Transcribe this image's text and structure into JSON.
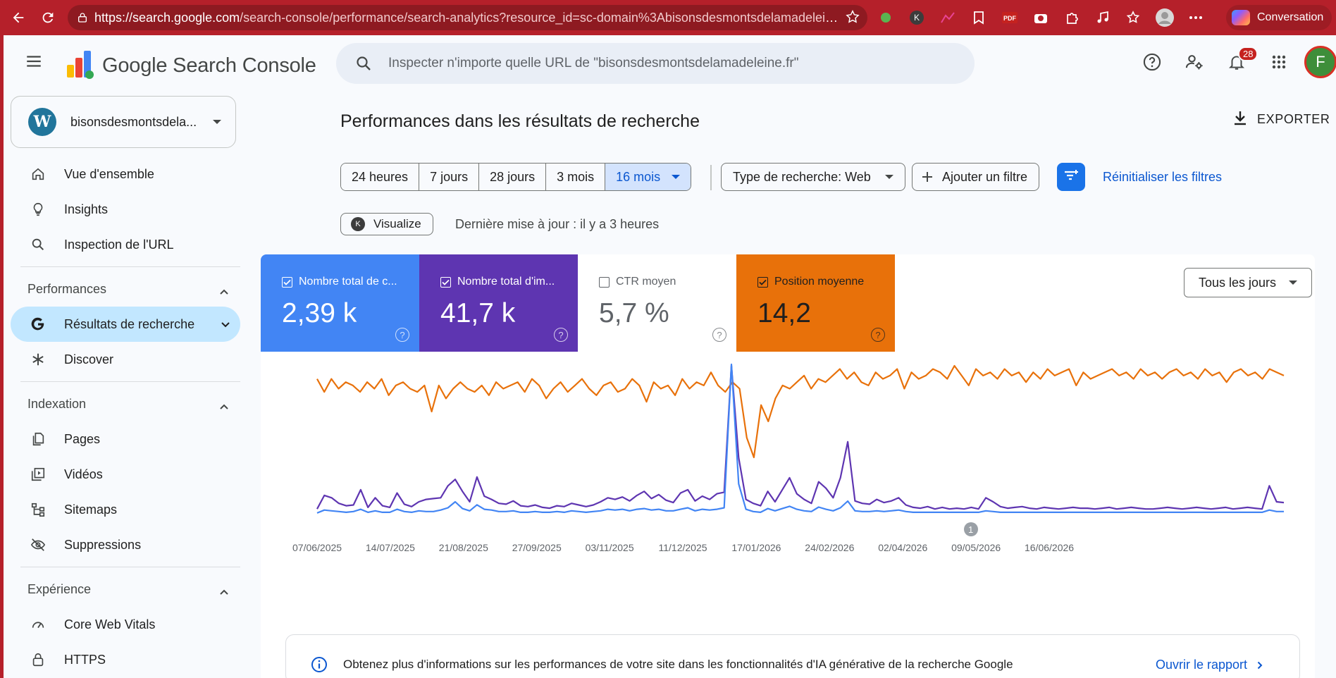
{
  "browser": {
    "url_main": "https://search.google.com",
    "url_rest": "/search-console/performance/search-analytics?resource_id=sc-domain%3Abisonsdesmontsdelamadeleine.fr...",
    "conversation_label": "Conversation",
    "icons": [
      "back-icon",
      "reload-icon",
      "lock-icon",
      "star-icon",
      "extension-icons",
      "more-icon"
    ]
  },
  "header": {
    "product_name": "Google Search Console",
    "search_placeholder": "Inspecter n'importe quelle URL de \"bisonsdesmontsdelamadeleine.fr\"",
    "notifications_count": "28",
    "avatar_letter": "F"
  },
  "sidebar": {
    "property_name": "bisonsdesmontsdela...",
    "top_items": [
      {
        "label": "Vue d'ensemble",
        "icon": "home-icon"
      },
      {
        "label": "Insights",
        "icon": "lightbulb-icon"
      },
      {
        "label": "Inspection de l'URL",
        "icon": "search-icon"
      }
    ],
    "performances": {
      "title": "Performances",
      "items": [
        {
          "label": "Résultats de recherche",
          "icon": "google-g-icon",
          "active": true
        },
        {
          "label": "Discover",
          "icon": "asterisk-icon"
        }
      ]
    },
    "indexation": {
      "title": "Indexation",
      "items": [
        {
          "label": "Pages",
          "icon": "pages-icon"
        },
        {
          "label": "Vidéos",
          "icon": "video-icon"
        },
        {
          "label": "Sitemaps",
          "icon": "sitemap-icon"
        },
        {
          "label": "Suppressions",
          "icon": "eye-off-icon"
        }
      ]
    },
    "experience": {
      "title": "Expérience",
      "items": [
        {
          "label": "Core Web Vitals",
          "icon": "gauge-icon"
        },
        {
          "label": "HTTPS",
          "icon": "lock-icon"
        }
      ]
    }
  },
  "main": {
    "title": "Performances dans les résultats de recherche",
    "export_label": "EXPORTER",
    "ranges": [
      "24 heures",
      "7 jours",
      "28 jours",
      "3 mois",
      "16 mois"
    ],
    "selected_range": "16 mois",
    "search_type": "Type de recherche: Web",
    "add_filter": "Ajouter un filtre",
    "reset_filters": "Réinitialiser les filtres",
    "visualize_label": "Visualize",
    "last_update": "Dernière mise à jour : il y a 3 heures",
    "days_selector": "Tous les jours",
    "metrics": [
      {
        "label": "Nombre total de c...",
        "value": "2,39 k",
        "checked": true,
        "color": "#4285f4"
      },
      {
        "label": "Nombre total d'im...",
        "value": "41,7 k",
        "checked": true,
        "color": "#5e35b1"
      },
      {
        "label": "CTR moyen",
        "value": "5,7 %",
        "checked": false,
        "color": "#ffffff"
      },
      {
        "label": "Position moyenne",
        "value": "14,2",
        "checked": true,
        "color": "#e8710a"
      }
    ],
    "annotation_marker": "1",
    "info_banner": {
      "text": "Obtenez plus d'informations sur les performances de votre site dans les fonctionnalités d'IA générative de la recherche Google",
      "link": "Ouvrir le rapport"
    }
  },
  "chart_data": {
    "type": "line",
    "x_tick_labels": [
      "07/06/2025",
      "14/07/2025",
      "21/08/2025",
      "27/09/2025",
      "03/11/2025",
      "11/12/2025",
      "17/01/2026",
      "24/02/2026",
      "02/04/2026",
      "09/05/2026",
      "16/06/2026"
    ],
    "series": [
      {
        "name": "Position moyenne",
        "color": "#e8710a",
        "values": [
          12,
          16,
          12,
          15,
          13,
          14,
          16,
          13,
          15,
          12,
          17,
          14,
          13,
          15,
          16,
          14,
          22,
          14,
          18,
          15,
          13,
          15,
          16,
          14,
          17,
          13,
          15,
          14,
          13,
          16,
          12,
          14,
          18,
          15,
          13,
          16,
          14,
          12,
          15,
          17,
          14,
          13,
          16,
          15,
          12,
          14,
          19,
          13,
          15,
          14,
          17,
          12,
          15,
          13,
          14,
          10,
          14,
          16,
          13,
          15,
          30,
          36,
          20,
          25,
          18,
          14,
          15,
          13,
          11,
          15,
          12,
          13,
          11,
          9,
          12,
          10,
          13,
          14,
          10,
          12,
          11,
          9,
          15,
          10,
          12,
          11,
          9,
          10,
          12,
          8,
          11,
          14,
          9,
          11,
          10,
          12,
          9,
          11,
          10,
          13,
          10,
          12,
          9,
          11,
          10,
          9,
          14,
          10,
          12,
          11,
          10,
          9,
          11,
          10,
          12,
          9,
          11,
          10,
          12,
          10,
          9,
          11,
          10,
          12,
          9,
          11,
          10,
          13,
          10,
          9,
          11,
          10,
          12,
          9,
          10,
          11
        ]
      },
      {
        "name": "Nombre total d'impressions",
        "color": "#5e35b1",
        "values": [
          60,
          230,
          200,
          130,
          100,
          110,
          300,
          80,
          200,
          100,
          80,
          260,
          120,
          90,
          150,
          180,
          190,
          200,
          350,
          430,
          280,
          150,
          460,
          220,
          180,
          130,
          120,
          160,
          100,
          90,
          110,
          80,
          70,
          100,
          90,
          130,
          110,
          90,
          110,
          150,
          200,
          180,
          210,
          160,
          230,
          280,
          190,
          240,
          170,
          140,
          260,
          300,
          160,
          220,
          180,
          250,
          270,
          1850,
          700,
          180,
          130,
          100,
          280,
          150,
          300,
          450,
          250,
          180,
          130,
          400,
          320,
          200,
          450,
          900,
          160,
          130,
          120,
          180,
          140,
          160,
          200,
          110,
          80,
          70,
          90,
          60,
          80,
          60,
          70,
          60,
          80,
          60,
          200,
          150,
          90,
          70,
          80,
          90,
          70,
          60,
          80,
          70,
          60,
          70,
          80,
          70,
          70,
          60,
          70,
          80,
          60,
          70,
          80,
          70,
          60,
          60,
          70,
          80,
          70,
          60,
          70,
          80,
          70,
          60,
          70,
          80,
          60,
          70,
          80,
          70,
          60,
          350,
          150,
          140
        ]
      },
      {
        "name": "Nombre total de clics",
        "color": "#4285f4",
        "values": [
          10,
          50,
          40,
          30,
          20,
          30,
          60,
          20,
          40,
          20,
          20,
          60,
          30,
          20,
          40,
          30,
          30,
          50,
          80,
          160,
          70,
          40,
          120,
          60,
          50,
          30,
          30,
          40,
          20,
          20,
          30,
          20,
          20,
          30,
          20,
          40,
          30,
          20,
          30,
          40,
          60,
          50,
          60,
          40,
          60,
          70,
          50,
          60,
          40,
          40,
          60,
          80,
          40,
          60,
          50,
          60,
          80,
          2000,
          400,
          60,
          30,
          20,
          70,
          40,
          70,
          100,
          60,
          40,
          30,
          90,
          60,
          40,
          80,
          170,
          40,
          30,
          30,
          40,
          30,
          40,
          50,
          30,
          20,
          20,
          20,
          20,
          20,
          20,
          20,
          20,
          20,
          20,
          40,
          30,
          20,
          20,
          20,
          20,
          20,
          20,
          20,
          20,
          20,
          20,
          20,
          20,
          20,
          20,
          20,
          20,
          20,
          20,
          20,
          20,
          20,
          20,
          20,
          20,
          20,
          20,
          20,
          20,
          20,
          20,
          20,
          20,
          20,
          20,
          20,
          20,
          20,
          50,
          30,
          30
        ]
      }
    ],
    "grid": false,
    "legend": "none"
  }
}
